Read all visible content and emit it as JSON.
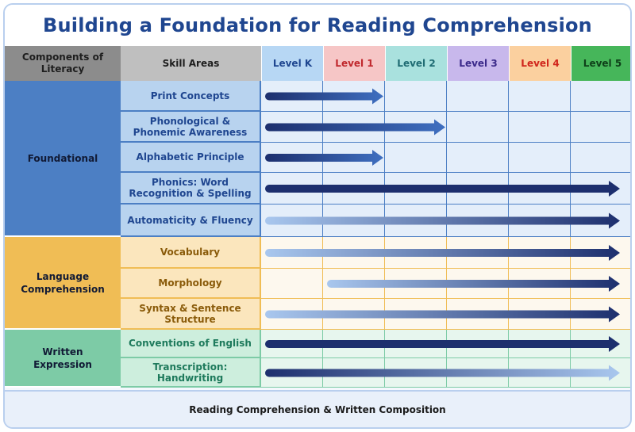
{
  "title": "Building a Foundation for Reading Comprehension",
  "header": {
    "components_label": "Components of Literacy",
    "skills_label": "Skill Areas"
  },
  "levels": [
    {
      "label": "Level K",
      "bg": "#b7d7f4",
      "color": "#1f4690"
    },
    {
      "label": "Level 1",
      "bg": "#f6c6c6",
      "color": "#c0282d"
    },
    {
      "label": "Level 2",
      "bg": "#a9e1de",
      "color": "#1f6b73"
    },
    {
      "label": "Level 3",
      "bg": "#c8b8ec",
      "color": "#3b2a8a"
    },
    {
      "label": "Level 4",
      "bg": "#fbd09f",
      "color": "#d0251c"
    },
    {
      "label": "Level 5",
      "bg": "#46b65a",
      "color": "#0e4019"
    }
  ],
  "groups": [
    {
      "component": "Foundational",
      "comp_bg": "#4c7fc4",
      "skill_bg": "#b8d3ef",
      "skill_color": "#1f4690",
      "grid_bg": "#e4eefa",
      "grid_line": "#4c7fc4",
      "skills": [
        {
          "label": "Print Concepts",
          "arrow": {
            "start": 0,
            "end": 2,
            "style": "fade-dark"
          }
        },
        {
          "label": "Phonological & Phonemic Awareness",
          "arrow": {
            "start": 0,
            "end": 3,
            "style": "fade-dark"
          }
        },
        {
          "label": "Alphabetic Principle",
          "arrow": {
            "start": 0,
            "end": 2,
            "style": "fade-dark"
          }
        },
        {
          "label": "Phonics: Word Recognition & Spelling",
          "arrow": {
            "start": 0,
            "end": 6,
            "style": "dark"
          }
        },
        {
          "label": "Automaticity & Fluency",
          "arrow": {
            "start": 0,
            "end": 6,
            "style": "light-to-dark"
          }
        }
      ]
    },
    {
      "component": "Language Comprehension",
      "comp_bg": "#f0bd55",
      "skill_bg": "#fbe6bd",
      "skill_color": "#8a5b0a",
      "grid_bg": "#fdf8ee",
      "grid_line": "#f0bd55",
      "skills": [
        {
          "label": "Vocabulary",
          "arrow": {
            "start": 0,
            "end": 6,
            "style": "light-to-dark"
          }
        },
        {
          "label": "Morphology",
          "arrow": {
            "start": 1,
            "end": 6,
            "style": "light-to-dark"
          }
        },
        {
          "label": "Syntax & Sentence Structure",
          "arrow": {
            "start": 0,
            "end": 6,
            "style": "light-to-dark"
          }
        }
      ]
    },
    {
      "component": "Written Expression",
      "comp_bg": "#7dcba6",
      "skill_bg": "#cdeedd",
      "skill_color": "#1e7a5c",
      "grid_bg": "#e7f6ee",
      "grid_line": "#7dcba6",
      "skills": [
        {
          "label": "Conventions of English",
          "arrow": {
            "start": 0,
            "end": 6,
            "style": "dark"
          }
        },
        {
          "label": "Transcription: Handwriting",
          "arrow": {
            "start": 0,
            "end": 6,
            "style": "dark-to-light"
          }
        }
      ]
    }
  ],
  "footer": "Reading Comprehension & Written Composition",
  "colors": {
    "arrow_dark": "#1d2f6e",
    "arrow_mid": "#3f6fc0",
    "arrow_light": "#a9c7ee"
  }
}
